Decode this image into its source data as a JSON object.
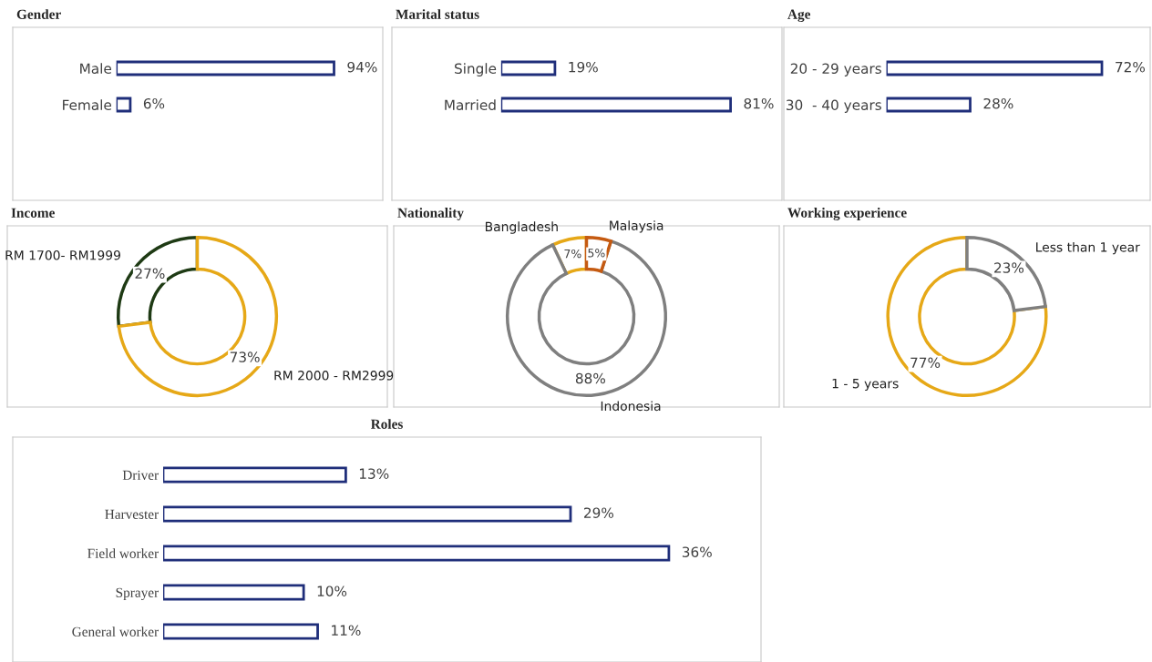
{
  "chart_data": [
    {
      "type": "bar",
      "orientation": "horizontal",
      "title": "Gender",
      "categories": [
        "Male",
        "Female"
      ],
      "values": [
        94,
        6
      ],
      "value_labels": [
        "94%",
        "6%"
      ],
      "color": "#1f2e7a"
    },
    {
      "type": "bar",
      "orientation": "horizontal",
      "title": "Marital status",
      "categories": [
        "Single",
        "Married"
      ],
      "values": [
        19,
        81
      ],
      "value_labels": [
        "19%",
        "81%"
      ],
      "color": "#1f2e7a"
    },
    {
      "type": "bar",
      "orientation": "horizontal",
      "title": "Age",
      "categories": [
        "20 - 29 years",
        "30  - 40 years"
      ],
      "values": [
        72,
        28
      ],
      "value_labels": [
        "72%",
        "28%"
      ],
      "color": "#1f2e7a"
    },
    {
      "type": "donut",
      "title": "Income",
      "categories": [
        "RM 1700- RM1999",
        "RM 2000 - RM2999"
      ],
      "values": [
        27,
        73
      ],
      "value_labels": [
        "27%",
        "73%"
      ],
      "colors": [
        "#1e3a14",
        "#e6a817"
      ]
    },
    {
      "type": "donut",
      "title": "Nationality",
      "categories": [
        "Bangladesh",
        "Indonesia",
        "Malaysia"
      ],
      "values": [
        7,
        88,
        5
      ],
      "value_labels": [
        "7%",
        "88%",
        "5%"
      ],
      "colors": [
        "#e6a817",
        "#7f7f7f",
        "#c55a11"
      ]
    },
    {
      "type": "donut",
      "title": "Working experience",
      "categories": [
        "1 - 5 years",
        "Less than 1 year"
      ],
      "values": [
        77,
        23
      ],
      "value_labels": [
        "77%",
        "23%"
      ],
      "colors": [
        "#e6a817",
        "#7f7f7f"
      ]
    },
    {
      "type": "bar",
      "orientation": "horizontal",
      "title": "Roles",
      "categories": [
        "Driver",
        "Harvester",
        "Field worker",
        "Sprayer",
        "General worker"
      ],
      "values": [
        13,
        29,
        36,
        10,
        11
      ],
      "value_labels": [
        "13%",
        "29%",
        "36%",
        "10%",
        "11%"
      ],
      "color": "#1f2e7a"
    }
  ]
}
